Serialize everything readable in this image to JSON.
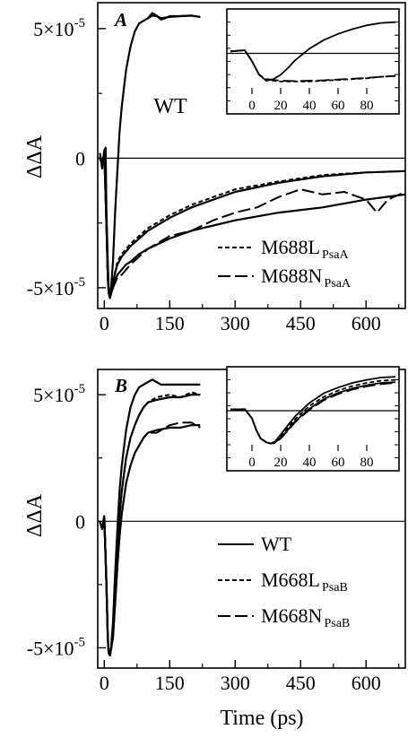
{
  "chart_data": [
    {
      "panel": "A",
      "type": "line",
      "ylabel": "ΔΔA",
      "xlabel": "",
      "xlim": [
        -15,
        690
      ],
      "ylim": [
        -5.8e-05,
        6e-05
      ],
      "xticks": [
        0,
        150,
        300,
        450,
        600
      ],
      "yticks": [
        {
          "v": 5e-05,
          "label": "5×10",
          "exp": "-5"
        },
        {
          "v": 0,
          "label": "0",
          "exp": ""
        },
        {
          "v": -5e-05,
          "label": "-5×10",
          "exp": "-5"
        }
      ],
      "annotation": "WT",
      "legend": [
        {
          "dash": "short",
          "label": "M688L",
          "sub": "PsaA"
        },
        {
          "dash": "long",
          "label": "M688N",
          "sub": "PsaA"
        }
      ],
      "series": [
        {
          "style": "solid",
          "x": [
            -10,
            -5,
            0,
            3,
            5,
            8,
            10,
            13,
            16,
            20,
            25,
            30,
            35,
            40,
            50,
            60,
            70,
            80,
            90,
            100,
            110,
            120,
            130,
            150,
            175,
            200,
            220
          ],
          "y": [
            2e-06,
            -4e-06,
            3e-06,
            4e-06,
            -2e-05,
            -4e-05,
            -5e-05,
            -5.3e-05,
            -4.9e-05,
            -4e-05,
            -2e-05,
            -5e-06,
            1e-05,
            2e-05,
            3.4e-05,
            4.3e-05,
            4.9e-05,
            5.2e-05,
            5.3e-05,
            5.4e-05,
            5.5e-05,
            5.48e-05,
            5.4e-05,
            5.45e-05,
            5.48e-05,
            5.5e-05,
            5.45e-05
          ]
        },
        {
          "style": "solid",
          "x": [
            100,
            110,
            120,
            130,
            140,
            150,
            175,
            200,
            220
          ],
          "y": [
            5.4e-05,
            5.6e-05,
            5.5e-05,
            5.35e-05,
            5.4e-05,
            5.48e-05,
            5.48e-05,
            5.5e-05,
            5.45e-05
          ]
        },
        {
          "style": "solid",
          "x": [
            -10,
            -5,
            0,
            5,
            8,
            10,
            13,
            16,
            20,
            25,
            30,
            40,
            50,
            60,
            80,
            100,
            150,
            200,
            250,
            300,
            400,
            500,
            600,
            690
          ],
          "y": [
            0,
            -2e-06,
            2e-06,
            -2.5e-05,
            -4.5e-05,
            -5.2e-05,
            -5.3e-05,
            -5.2e-05,
            -4.8e-05,
            -4.4e-05,
            -4.1e-05,
            -3.8e-05,
            -3.6e-05,
            -3.4e-05,
            -3.1e-05,
            -2.8e-05,
            -2.3e-05,
            -1.9e-05,
            -1.6e-05,
            -1.3e-05,
            -9.5e-06,
            -7e-06,
            -5.5e-06,
            -5e-06
          ]
        },
        {
          "style": "short",
          "x": [
            -10,
            -5,
            0,
            5,
            8,
            10,
            13,
            16,
            20,
            25,
            30,
            40,
            50,
            60,
            80,
            100,
            150,
            200,
            250,
            300,
            400,
            500,
            600,
            690
          ],
          "y": [
            0,
            -2e-06,
            2e-06,
            -2.6e-05,
            -4.6e-05,
            -5.2e-05,
            -5.4e-05,
            -5.1e-05,
            -4.8e-05,
            -4.4e-05,
            -4e-05,
            -3.7e-05,
            -3.5e-05,
            -3.3e-05,
            -3e-05,
            -2.7e-05,
            -2.2e-05,
            -1.8e-05,
            -1.5e-05,
            -1.2e-05,
            -9e-06,
            -6.5e-06,
            -5.5e-06,
            -5e-06
          ]
        },
        {
          "style": "solid",
          "x": [
            -10,
            -5,
            0,
            5,
            8,
            10,
            13,
            16,
            20,
            25,
            30,
            40,
            50,
            60,
            80,
            100,
            150,
            200,
            250,
            300,
            400,
            500,
            600,
            690
          ],
          "y": [
            0,
            -2e-06,
            2e-06,
            -2.6e-05,
            -4.6e-05,
            -5.2e-05,
            -5.4e-05,
            -5.2e-05,
            -5e-05,
            -4.7e-05,
            -4.5e-05,
            -4.3e-05,
            -4.1e-05,
            -4e-05,
            -3.7e-05,
            -3.5e-05,
            -3.1e-05,
            -2.8e-05,
            -2.6e-05,
            -2.4e-05,
            -2.1e-05,
            -1.9e-05,
            -1.6e-05,
            -1.4e-05
          ]
        },
        {
          "style": "long",
          "x": [
            -10,
            -5,
            0,
            5,
            8,
            10,
            13,
            16,
            20,
            25,
            30,
            40,
            50,
            60,
            80,
            100,
            150,
            200,
            250,
            300,
            350,
            400,
            450,
            500,
            550,
            600,
            625,
            650,
            690
          ],
          "y": [
            0,
            -2e-06,
            2e-06,
            -2.6e-05,
            -4.6e-05,
            -5.2e-05,
            -5.4e-05,
            -5.2e-05,
            -5e-05,
            -4.8e-05,
            -4.6e-05,
            -4.5e-05,
            -4.3e-05,
            -4.1e-05,
            -3.8e-05,
            -3.5e-05,
            -3e-05,
            -2.8e-05,
            -2.4e-05,
            -2.1e-05,
            -1.9e-05,
            -1.5e-05,
            -1.2e-05,
            -1.4e-05,
            -1.3e-05,
            -1.6e-05,
            -2.1e-05,
            -1.6e-05,
            -1.3e-05
          ]
        }
      ],
      "inset": {
        "xlim": [
          -15,
          100
        ],
        "ylim": [
          -1,
          1
        ],
        "xticks": [
          0,
          20,
          40,
          60,
          80
        ],
        "series": [
          {
            "style": "solid",
            "x": [
              -15,
              -5,
              0,
              5,
              10,
              15,
              20,
              25,
              30,
              40,
              50,
              60,
              70,
              80,
              90,
              100
            ],
            "y": [
              0.05,
              0.08,
              -0.2,
              -0.55,
              -0.7,
              -0.66,
              -0.55,
              -0.38,
              -0.18,
              0.12,
              0.34,
              0.5,
              0.62,
              0.72,
              0.78,
              0.8
            ]
          },
          {
            "style": "short",
            "x": [
              -15,
              -5,
              0,
              5,
              10,
              15,
              20,
              30,
              40,
              50,
              60,
              70,
              80,
              90,
              100
            ],
            "y": [
              0.05,
              0.08,
              -0.2,
              -0.55,
              -0.68,
              -0.7,
              -0.72,
              -0.72,
              -0.72,
              -0.7,
              -0.68,
              -0.66,
              -0.64,
              -0.6,
              -0.58
            ]
          },
          {
            "style": "long",
            "x": [
              -15,
              -5,
              0,
              5,
              10,
              15,
              20,
              30,
              40,
              50,
              60,
              70,
              80,
              90,
              100
            ],
            "y": [
              0.05,
              0.08,
              -0.2,
              -0.55,
              -0.66,
              -0.68,
              -0.7,
              -0.71,
              -0.7,
              -0.69,
              -0.67,
              -0.65,
              -0.63,
              -0.6,
              -0.58
            ]
          }
        ]
      }
    },
    {
      "panel": "B",
      "type": "line",
      "ylabel": "ΔΔA",
      "xlabel": "Time (ps)",
      "xlim": [
        -15,
        690
      ],
      "ylim": [
        -5.8e-05,
        6e-05
      ],
      "xticks": [
        0,
        150,
        300,
        450,
        600
      ],
      "yticks": [
        {
          "v": 5e-05,
          "label": "5×10",
          "exp": "-5"
        },
        {
          "v": 0,
          "label": "0",
          "exp": ""
        },
        {
          "v": -5e-05,
          "label": "-5×10",
          "exp": "-5"
        }
      ],
      "legend": [
        {
          "dash": "solid",
          "label": "WT",
          "sub": ""
        },
        {
          "dash": "short",
          "label": "M668L",
          "sub": "PsaB"
        },
        {
          "dash": "long",
          "label": "M668N",
          "sub": "PsaB"
        }
      ],
      "series": [
        {
          "style": "solid",
          "x": [
            -10,
            -5,
            0,
            5,
            8,
            10,
            13,
            16,
            20,
            25,
            30,
            35,
            40,
            50,
            60,
            70,
            80,
            90,
            100,
            110,
            120,
            130,
            150,
            175,
            200,
            220
          ],
          "y": [
            0,
            -3e-06,
            2e-06,
            -2.5e-05,
            -4.6e-05,
            -5.2e-05,
            -5.3e-05,
            -4.9e-05,
            -4e-05,
            -2e-05,
            -3e-06,
            1.2e-05,
            2.2e-05,
            3.6e-05,
            4.5e-05,
            5e-05,
            5.3e-05,
            5.4e-05,
            5.5e-05,
            5.6e-05,
            5.5e-05,
            5.4e-05,
            5.4e-05,
            5.4e-05,
            5.4e-05,
            5.4e-05
          ]
        },
        {
          "style": "solid",
          "x": [
            -10,
            -5,
            0,
            5,
            8,
            10,
            13,
            16,
            20,
            25,
            30,
            35,
            40,
            50,
            60,
            70,
            80,
            90,
            100,
            120,
            150,
            175,
            200,
            220
          ],
          "y": [
            0,
            -3e-06,
            2e-06,
            -2.5e-05,
            -4.6e-05,
            -5.2e-05,
            -5.3e-05,
            -5e-05,
            -4.4e-05,
            -2.8e-05,
            -1.2e-05,
            2e-06,
            1.2e-05,
            2.5e-05,
            3.3e-05,
            3.8e-05,
            4.2e-05,
            4.5e-05,
            4.7e-05,
            4.8e-05,
            4.9e-05,
            4.9e-05,
            5e-05,
            5e-05
          ]
        },
        {
          "style": "short",
          "x": [
            -10,
            -5,
            0,
            5,
            8,
            10,
            13,
            16,
            20,
            25,
            30,
            35,
            40,
            50,
            60,
            70,
            80,
            90,
            100,
            120,
            150,
            175,
            200,
            220
          ],
          "y": [
            0,
            -3e-06,
            2e-06,
            -2.5e-05,
            -4.6e-05,
            -5.2e-05,
            -5.3e-05,
            -5e-05,
            -4.4e-05,
            -2.8e-05,
            -1.2e-05,
            2e-06,
            1.2e-05,
            2.5e-05,
            3.3e-05,
            3.8e-05,
            4.2e-05,
            4.5e-05,
            4.7e-05,
            4.9e-05,
            5e-05,
            4.9e-05,
            5.1e-05,
            5e-05
          ]
        },
        {
          "style": "solid",
          "x": [
            -10,
            -5,
            0,
            5,
            8,
            10,
            13,
            16,
            20,
            25,
            30,
            35,
            40,
            50,
            60,
            70,
            80,
            90,
            100,
            120,
            150,
            175,
            200,
            220
          ],
          "y": [
            0,
            -3e-06,
            2e-06,
            -2.5e-05,
            -4.6e-05,
            -5.2e-05,
            -5.3e-05,
            -5e-05,
            -4.6e-05,
            -3.2e-05,
            -1.8e-05,
            -6e-06,
            3e-06,
            1.5e-05,
            2.2e-05,
            2.7e-05,
            3e-05,
            3.3e-05,
            3.5e-05,
            3.6e-05,
            3.7e-05,
            3.7e-05,
            3.8e-05,
            3.8e-05
          ]
        },
        {
          "style": "long",
          "x": [
            -10,
            -5,
            0,
            5,
            8,
            10,
            13,
            16,
            20,
            25,
            30,
            35,
            40,
            50,
            60,
            70,
            80,
            90,
            100,
            120,
            150,
            175,
            200,
            220
          ],
          "y": [
            0,
            -3e-06,
            2e-06,
            -2.5e-05,
            -4.6e-05,
            -5.2e-05,
            -5.3e-05,
            -5e-05,
            -4.6e-05,
            -3.2e-05,
            -1.8e-05,
            -6e-06,
            3e-06,
            1.5e-05,
            2.2e-05,
            2.7e-05,
            3e-05,
            3.3e-05,
            3.5e-05,
            3.5e-05,
            3.8e-05,
            3.9e-05,
            3.9e-05,
            3.7e-05
          ]
        }
      ],
      "inset": {
        "xlim": [
          -15,
          100
        ],
        "ylim": [
          -1,
          1
        ],
        "xticks": [
          0,
          20,
          40,
          60,
          80
        ],
        "series": [
          {
            "style": "solid",
            "x": [
              -15,
              -5,
              0,
              3,
              6,
              10,
              13,
              16,
              20,
              25,
              30,
              40,
              50,
              60,
              70,
              80,
              90,
              100
            ],
            "y": [
              0.03,
              0.04,
              -0.2,
              -0.5,
              -0.72,
              -0.82,
              -0.85,
              -0.8,
              -0.62,
              -0.38,
              -0.15,
              0.2,
              0.45,
              0.6,
              0.72,
              0.8,
              0.86,
              0.88
            ]
          },
          {
            "style": "short",
            "x": [
              -15,
              -5,
              0,
              3,
              6,
              10,
              13,
              16,
              20,
              25,
              30,
              40,
              50,
              60,
              70,
              80,
              90,
              100
            ],
            "y": [
              0.03,
              0.04,
              -0.2,
              -0.5,
              -0.72,
              -0.82,
              -0.85,
              -0.82,
              -0.66,
              -0.44,
              -0.22,
              0.12,
              0.36,
              0.52,
              0.64,
              0.72,
              0.78,
              0.8
            ]
          },
          {
            "style": "solid",
            "x": [
              -15,
              -5,
              0,
              3,
              6,
              10,
              13,
              16,
              20,
              25,
              30,
              40,
              50,
              60,
              70,
              80,
              90,
              100
            ],
            "y": [
              0.03,
              0.04,
              -0.2,
              -0.5,
              -0.72,
              -0.82,
              -0.85,
              -0.83,
              -0.7,
              -0.5,
              -0.28,
              0.05,
              0.3,
              0.46,
              0.58,
              0.66,
              0.72,
              0.74
            ]
          },
          {
            "style": "long",
            "x": [
              -15,
              -5,
              0,
              3,
              6,
              10,
              13,
              16,
              20,
              25,
              30,
              40,
              50,
              60,
              70,
              80,
              90,
              100
            ],
            "y": [
              0.03,
              0.04,
              -0.2,
              -0.5,
              -0.72,
              -0.82,
              -0.85,
              -0.84,
              -0.72,
              -0.52,
              -0.3,
              0.02,
              0.27,
              0.43,
              0.55,
              0.63,
              0.69,
              0.72
            ]
          }
        ]
      }
    }
  ]
}
